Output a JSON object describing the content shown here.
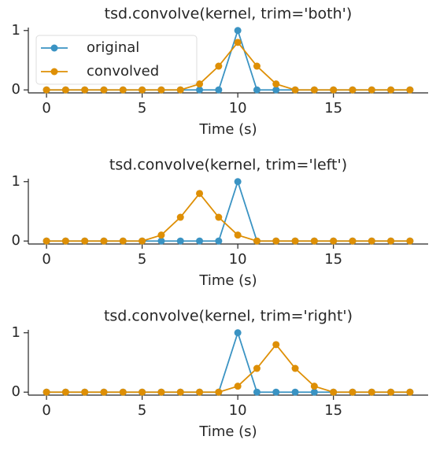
{
  "chart_data": [
    {
      "type": "line",
      "title": "tsd.convolve(kernel, trim='both')",
      "xlabel": "Time (s)",
      "x": [
        0,
        1,
        2,
        3,
        4,
        5,
        6,
        7,
        8,
        9,
        10,
        11,
        12,
        13,
        14,
        15,
        16,
        17,
        18,
        19
      ],
      "series": [
        {
          "name": "original",
          "color": "#3a93c3",
          "values": [
            0,
            0,
            0,
            0,
            0,
            0,
            0,
            0,
            0,
            0,
            1,
            0,
            0,
            0,
            0,
            0,
            0,
            0,
            0,
            0
          ]
        },
        {
          "name": "convolved",
          "color": "#de8f05",
          "values": [
            0,
            0,
            0,
            0,
            0,
            0,
            0,
            0,
            0.1,
            0.4,
            0.8,
            0.4,
            0.1,
            0,
            0,
            0,
            0,
            0,
            0,
            0
          ]
        }
      ],
      "xlim": [
        -0.95,
        19.95
      ],
      "ylim": [
        -0.05,
        1.05
      ],
      "xticks": [
        0,
        5,
        10,
        15
      ],
      "yticks": [
        0,
        1
      ],
      "legend": "upper left"
    },
    {
      "type": "line",
      "title": "tsd.convolve(kernel, trim='left')",
      "xlabel": "Time (s)",
      "x": [
        0,
        1,
        2,
        3,
        4,
        5,
        6,
        7,
        8,
        9,
        10,
        11,
        12,
        13,
        14,
        15,
        16,
        17,
        18,
        19
      ],
      "series": [
        {
          "color": "#3a93c3",
          "values": [
            0,
            0,
            0,
            0,
            0,
            0,
            0,
            0,
            0,
            0,
            1,
            0,
            0,
            0,
            0,
            0,
            0,
            0,
            0,
            0
          ]
        },
        {
          "color": "#de8f05",
          "values": [
            0,
            0,
            0,
            0,
            0,
            0,
            0.1,
            0.4,
            0.8,
            0.4,
            0.1,
            0,
            0,
            0,
            0,
            0,
            0,
            0,
            0,
            0
          ]
        }
      ],
      "xlim": [
        -0.95,
        19.95
      ],
      "ylim": [
        -0.05,
        1.05
      ],
      "xticks": [
        0,
        5,
        10,
        15
      ],
      "yticks": [
        0,
        1
      ]
    },
    {
      "type": "line",
      "title": "tsd.convolve(kernel, trim='right')",
      "xlabel": "Time (s)",
      "x": [
        0,
        1,
        2,
        3,
        4,
        5,
        6,
        7,
        8,
        9,
        10,
        11,
        12,
        13,
        14,
        15,
        16,
        17,
        18,
        19
      ],
      "series": [
        {
          "color": "#3a93c3",
          "values": [
            0,
            0,
            0,
            0,
            0,
            0,
            0,
            0,
            0,
            0,
            1,
            0,
            0,
            0,
            0,
            0,
            0,
            0,
            0,
            0
          ]
        },
        {
          "color": "#de8f05",
          "values": [
            0,
            0,
            0,
            0,
            0,
            0,
            0,
            0,
            0,
            0,
            0.1,
            0.4,
            0.8,
            0.4,
            0.1,
            0,
            0,
            0,
            0,
            0
          ]
        }
      ],
      "xlim": [
        -0.95,
        19.95
      ],
      "ylim": [
        -0.05,
        1.05
      ],
      "xticks": [
        0,
        5,
        10,
        15
      ],
      "yticks": [
        0,
        1
      ]
    }
  ]
}
